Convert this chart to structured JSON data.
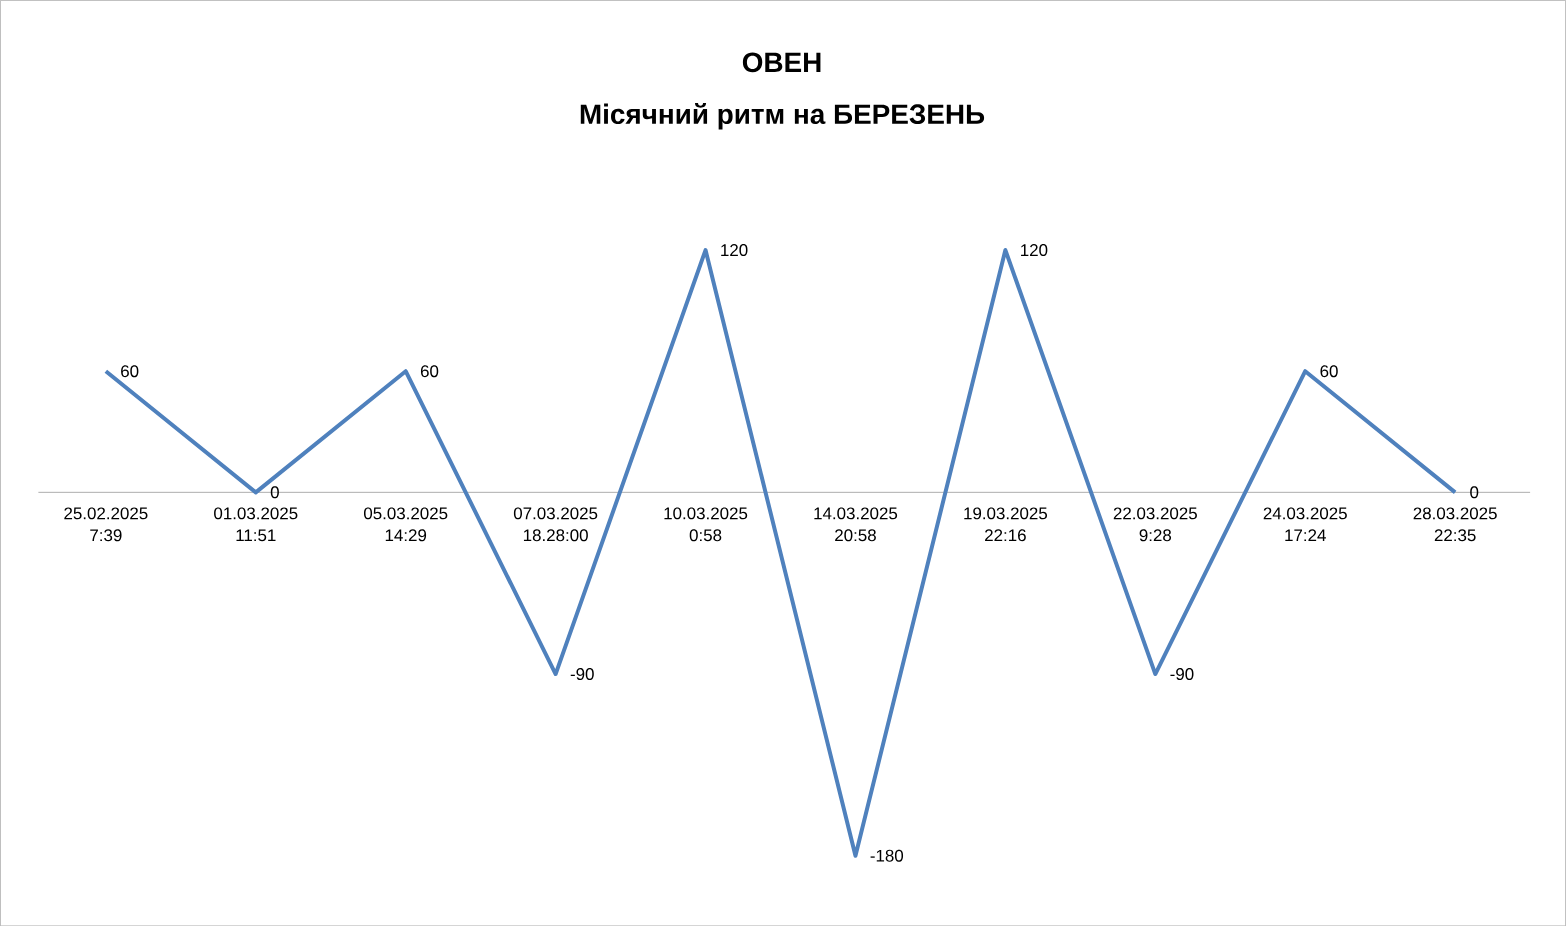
{
  "chart_data": {
    "type": "line",
    "title": "ОВЕН",
    "subtitle": "Місячний ритм на БЕРЕЗЕНЬ",
    "categories": [
      "25.02.2025 7:39",
      "01.03.2025 11:51",
      "05.03.2025 14:29",
      "07.03.2025 18.28:00",
      "10.03.2025 0:58",
      "14.03.2025 20:58",
      "19.03.2025 22:16",
      "22.03.2025 9:28",
      "24.03.2025 17:24",
      "28.03.2025 22:35"
    ],
    "values": [
      60,
      0,
      60,
      -90,
      120,
      -180,
      120,
      -90,
      60,
      0
    ],
    "color": "#4f81bd",
    "marker": "none",
    "data_labels": true
  }
}
